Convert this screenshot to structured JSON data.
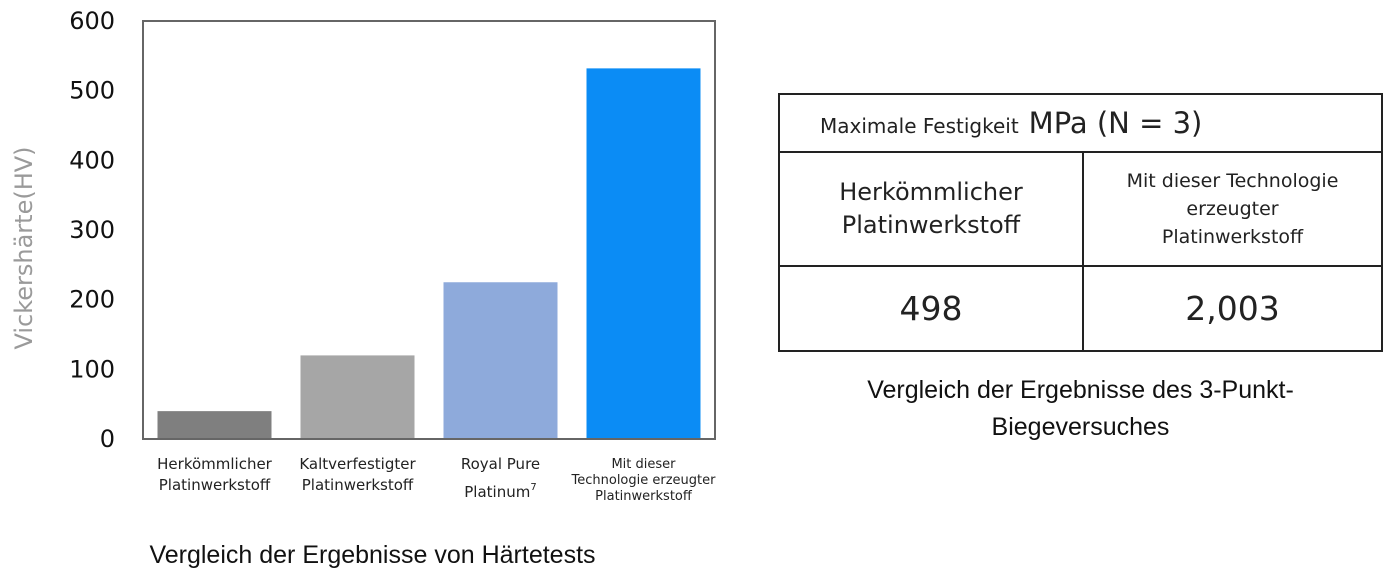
{
  "chart_data": {
    "type": "bar",
    "ylabel": "Vickershärte(HV)",
    "xlabel": "",
    "ylim": [
      0,
      600
    ],
    "yticks": [
      0,
      100,
      200,
      300,
      400,
      500,
      600
    ],
    "grid": false,
    "categories": [
      "Herkömmlicher Platinwerkstoff",
      "Kaltverfestigter Platinwerkstoff",
      "Royal Pure Platinum7",
      "Mit dieser Technologie erzeugter Platinwerkstoff"
    ],
    "category_lines": [
      [
        "Herkömmlicher",
        "Platinwerkstoff"
      ],
      [
        "Kaltverfestigter",
        "Platinwerkstoff"
      ],
      [
        "Royal Pure",
        "Platinum"
      ],
      [
        "Mit dieser",
        "Technologie erzeugter",
        "Platinwerkstoff"
      ]
    ],
    "superscripts": [
      "",
      "",
      "7",
      ""
    ],
    "values": [
      40,
      120,
      225,
      532
    ],
    "colors": [
      "#7f7f7f",
      "#a6a6a6",
      "#8eaadb",
      "#0b8cf5"
    ],
    "caption": "Vergleich der Ergebnisse von Härtetests"
  },
  "table": {
    "header_label": "Maximale Festigkeit",
    "header_unit": "MPa (N = 3)",
    "columns": [
      [
        "Herkömmlicher",
        "Platinwerkstoff"
      ],
      [
        "Mit dieser Technologie",
        "erzeugter",
        "Platinwerkstoff"
      ]
    ],
    "values": [
      "498",
      "2,003"
    ],
    "caption_lines": [
      "Vergleich der Ergebnisse des 3-Punkt-",
      "Biegeversuches"
    ]
  }
}
